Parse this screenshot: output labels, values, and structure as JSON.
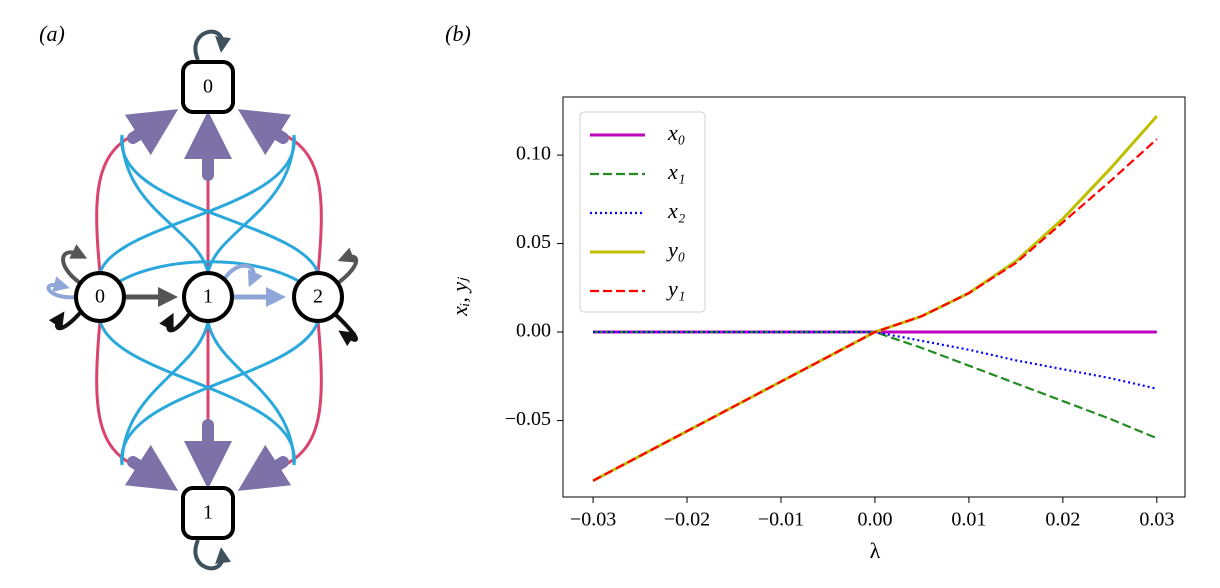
{
  "diagram": {
    "panel_label": "(a)",
    "boxes": [
      "0",
      "1"
    ],
    "circles": [
      "0",
      "1",
      "2"
    ]
  },
  "chart_data": {
    "type": "line",
    "panel_label": "(b)",
    "xlabel": "λ",
    "ylabel": "xᵢ, yⱼ",
    "x": [
      -0.03,
      -0.02,
      -0.01,
      0,
      0.005,
      0.01,
      0.015,
      0.02,
      0.025,
      0.03
    ],
    "series": [
      {
        "name": "x₀",
        "color": "#bf00bf",
        "linestyle": "solid",
        "values": [
          0,
          0,
          0,
          0,
          0,
          0,
          0,
          0,
          0,
          0
        ]
      },
      {
        "name": "x₁",
        "color": "#228b22",
        "linestyle": "dashed",
        "values": [
          0,
          0,
          0,
          0,
          -0.009,
          -0.019,
          -0.029,
          -0.039,
          -0.049,
          -0.06
        ]
      },
      {
        "name": "x₂",
        "color": "#0000ff",
        "linestyle": "dotted",
        "values": [
          0,
          0,
          0,
          0,
          -0.005,
          -0.01,
          -0.016,
          -0.021,
          -0.026,
          -0.032
        ]
      },
      {
        "name": "y₀",
        "color": "#bfbf00",
        "linestyle": "solid",
        "values": [
          -0.084,
          -0.056,
          -0.028,
          0,
          0.009,
          0.022,
          0.04,
          0.064,
          0.092,
          0.122
        ]
      },
      {
        "name": "y₁",
        "color": "#ff0000",
        "linestyle": "dashed",
        "values": [
          -0.084,
          -0.056,
          -0.028,
          0,
          0.009,
          0.022,
          0.039,
          0.062,
          0.085,
          0.109
        ]
      }
    ],
    "xlim": [
      -0.0332,
      0.033
    ],
    "ylim": [
      -0.0932,
      0.1328
    ],
    "xticks": [
      {
        "value": -0.03,
        "label": "−0.03"
      },
      {
        "value": -0.02,
        "label": "−0.02"
      },
      {
        "value": -0.01,
        "label": "−0.01"
      },
      {
        "value": 0,
        "label": "0.00"
      },
      {
        "value": 0.01,
        "label": "0.01"
      },
      {
        "value": 0.02,
        "label": "0.02"
      },
      {
        "value": 0.03,
        "label": "0.03"
      }
    ],
    "yticks": [
      {
        "value": -0.05,
        "label": "−0.05"
      },
      {
        "value": 0,
        "label": "0.00"
      },
      {
        "value": 0.05,
        "label": "0.05"
      },
      {
        "value": 0.1,
        "label": "0.10"
      }
    ],
    "legend": "upper left"
  }
}
